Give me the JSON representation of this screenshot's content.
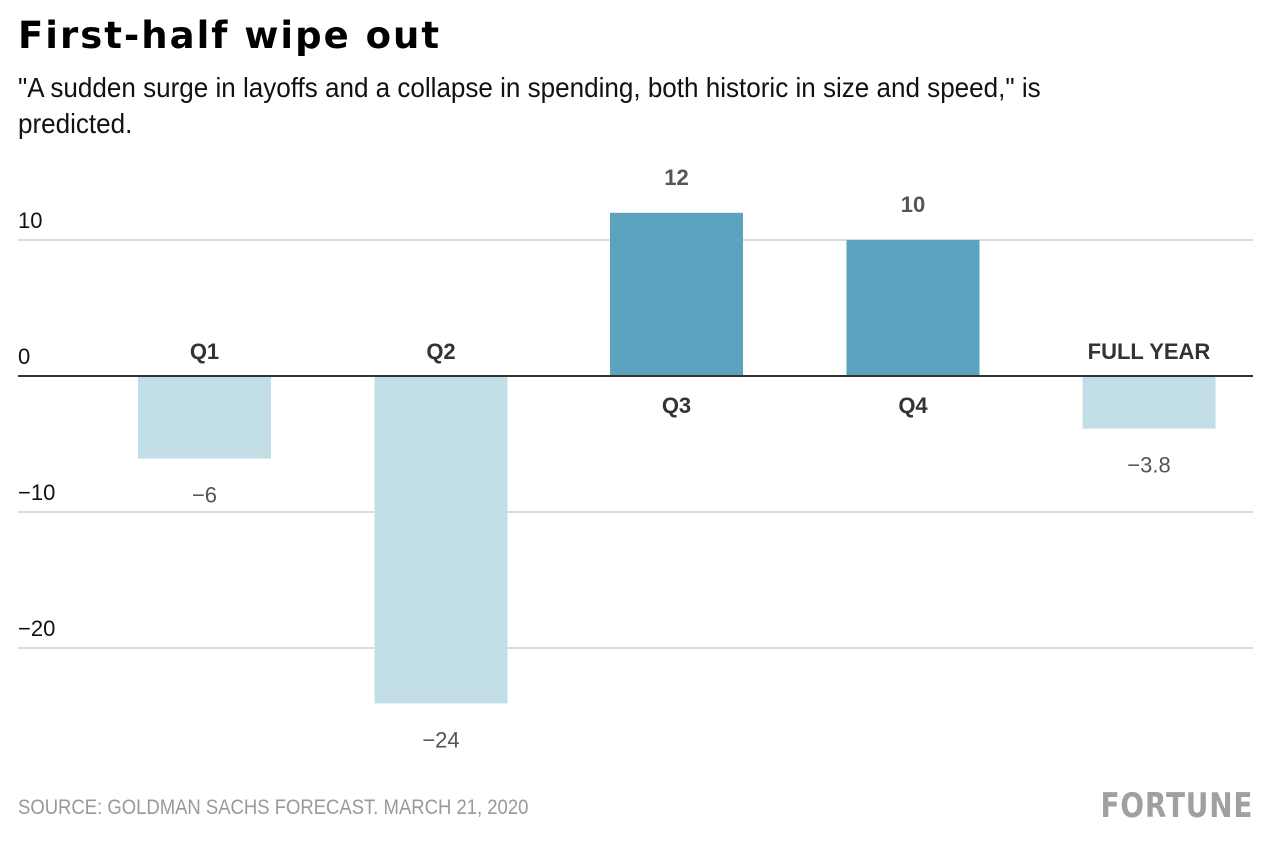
{
  "title": "First-half wipe out",
  "subtitle": "\"A sudden surge in layoffs and a collapse in spending, both historic in size and speed,\" is predicted.",
  "source": "SOURCE: GOLDMAN SACHS FORECAST. MARCH 21, 2020",
  "logo": "FORTUNE",
  "colors": {
    "positive": "#5ba3bf",
    "negative": "#c2dfe7",
    "grid": "#d0d0d0",
    "zero_line": "#333333"
  },
  "chart_data": {
    "type": "bar",
    "title": "First-half wipe out",
    "xlabel": "",
    "ylabel": "",
    "categories": [
      "Q1",
      "Q2",
      "Q3",
      "Q4",
      "FULL YEAR"
    ],
    "values": [
      -6,
      -24,
      12,
      10,
      -3.8
    ],
    "value_labels": [
      "−6",
      "−24",
      "12",
      "10",
      "−3.8"
    ],
    "ylim": [
      -26,
      14
    ],
    "yticks": [
      10,
      0,
      -10,
      -20
    ],
    "ytick_labels": [
      "10",
      "0",
      "−10",
      "−20"
    ],
    "grid": true,
    "legend": "none"
  }
}
